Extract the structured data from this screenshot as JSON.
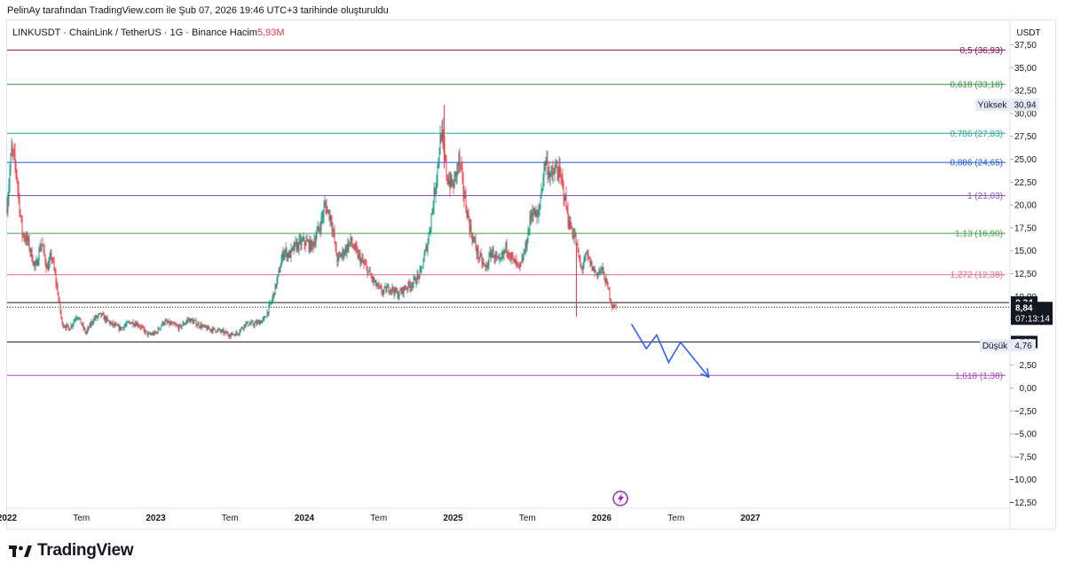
{
  "attribution": "PelinAy tarafından TradingView.com ile Şub 07, 2026 19:46 UTC+3 tarihinde oluşturuldu",
  "symbol": {
    "text": "LINKUSDT · ChainLink / TetherUS · 1G · Binance",
    "volume_label": "Hacim",
    "volume_value": "5,93M"
  },
  "currency": "USDT",
  "brand": "TradingView",
  "colors": {
    "up": "#089981",
    "down": "#f23645",
    "arrow": "#2962ff",
    "grid_border": "#e0e3eb"
  },
  "chart_data": {
    "type": "candlestick",
    "symbol": "LINKUSDT",
    "interval": "1G",
    "ylim": [
      -12.5,
      37.5
    ],
    "y_ticks": [
      "37,50",
      "35,00",
      "32,50",
      "30,00",
      "27,50",
      "25,00",
      "22,50",
      "20,00",
      "17,50",
      "15,00",
      "12,50",
      "10,00",
      "7,50",
      "5,00",
      "2,50",
      "0,00",
      "−2,50",
      "−5,00",
      "−7,50",
      "−10,00",
      "−12,50"
    ],
    "y_tick_values": [
      37.5,
      35,
      32.5,
      30,
      27.5,
      25,
      22.5,
      20,
      17.5,
      15,
      12.5,
      10,
      7.5,
      5,
      2.5,
      0,
      -2.5,
      -5,
      -7.5,
      -10,
      -12.5
    ],
    "x_ticks": [
      {
        "label": "2022",
        "t": 2022.0,
        "bold": true
      },
      {
        "label": "Tem",
        "t": 2022.5,
        "bold": false
      },
      {
        "label": "2023",
        "t": 2023.0,
        "bold": true
      },
      {
        "label": "Tem",
        "t": 2023.5,
        "bold": false
      },
      {
        "label": "2024",
        "t": 2024.0,
        "bold": true
      },
      {
        "label": "Tem",
        "t": 2024.5,
        "bold": false
      },
      {
        "label": "2025",
        "t": 2025.0,
        "bold": true
      },
      {
        "label": "Tem",
        "t": 2025.5,
        "bold": false
      },
      {
        "label": "2026",
        "t": 2026.0,
        "bold": true
      },
      {
        "label": "Tem",
        "t": 2026.5,
        "bold": false
      },
      {
        "label": "2027",
        "t": 2027.0,
        "bold": true
      }
    ],
    "fib_levels": [
      {
        "label": "0,5 (36,93)",
        "value": 36.93,
        "color": "#880e4f"
      },
      {
        "label": "0,618 (33,18)",
        "value": 33.18,
        "color": "#388e3c"
      },
      {
        "label": "0,786 (27,83)",
        "value": 27.83,
        "color": "#26a69a"
      },
      {
        "label": "0,886 (24,65)",
        "value": 24.65,
        "color": "#1e53e5"
      },
      {
        "label": "1 (21,03)",
        "value": 21.03,
        "color": "#7e57c2"
      },
      {
        "label": "1,13 (16,90)",
        "value": 16.9,
        "color": "#43a047"
      },
      {
        "label": "1,272 (12,38)",
        "value": 12.38,
        "color": "#f06292"
      },
      {
        "label": "1,618 (1,38)",
        "value": 1.38,
        "color": "#ab47bc"
      }
    ],
    "horizontal_lines": [
      {
        "value": 9.34,
        "style": "solid"
      },
      {
        "value": 8.84,
        "style": "dotted"
      },
      {
        "value": 5.03,
        "style": "solid"
      }
    ],
    "price_labels": {
      "high_label": "Yüksek",
      "high_value": "30,94",
      "high": 30.94,
      "low_label": "Düşük",
      "low_value": "4,76",
      "low": 4.76,
      "line_value": "9,34",
      "line": 9.34,
      "last_value": "8,84",
      "last": 8.84,
      "countdown": "07:13:14",
      "support_value": "5,03",
      "support": 5.03
    },
    "price_path": [
      [
        2022.0,
        20.0
      ],
      [
        2022.03,
        26.0
      ],
      [
        2022.06,
        24.0
      ],
      [
        2022.1,
        17.0
      ],
      [
        2022.14,
        16.0
      ],
      [
        2022.19,
        13.0
      ],
      [
        2022.23,
        16.0
      ],
      [
        2022.27,
        13.0
      ],
      [
        2022.3,
        14.5
      ],
      [
        2022.34,
        10.5
      ],
      [
        2022.37,
        7.0
      ],
      [
        2022.42,
        6.5
      ],
      [
        2022.47,
        8.0
      ],
      [
        2022.53,
        6.0
      ],
      [
        2022.58,
        7.5
      ],
      [
        2022.63,
        8.0
      ],
      [
        2022.7,
        7.0
      ],
      [
        2022.76,
        6.5
      ],
      [
        2022.83,
        7.2
      ],
      [
        2022.88,
        7.0
      ],
      [
        2022.95,
        5.8
      ],
      [
        2023.0,
        6.0
      ],
      [
        2023.05,
        7.2
      ],
      [
        2023.1,
        7.0
      ],
      [
        2023.16,
        6.6
      ],
      [
        2023.22,
        7.5
      ],
      [
        2023.28,
        7.0
      ],
      [
        2023.34,
        6.5
      ],
      [
        2023.42,
        6.3
      ],
      [
        2023.5,
        5.8
      ],
      [
        2023.55,
        6.0
      ],
      [
        2023.6,
        7.0
      ],
      [
        2023.67,
        7.0
      ],
      [
        2023.73,
        7.5
      ],
      [
        2023.78,
        9.5
      ],
      [
        2023.82,
        12.0
      ],
      [
        2023.86,
        15.0
      ],
      [
        2023.9,
        14.5
      ],
      [
        2023.94,
        15.5
      ],
      [
        2024.0,
        16.0
      ],
      [
        2024.05,
        15.5
      ],
      [
        2024.1,
        17.5
      ],
      [
        2024.14,
        20.0
      ],
      [
        2024.18,
        18.5
      ],
      [
        2024.22,
        14.0
      ],
      [
        2024.27,
        15.0
      ],
      [
        2024.31,
        16.0
      ],
      [
        2024.36,
        14.5
      ],
      [
        2024.42,
        13.0
      ],
      [
        2024.47,
        11.5
      ],
      [
        2024.52,
        10.5
      ],
      [
        2024.58,
        11.0
      ],
      [
        2024.63,
        10.2
      ],
      [
        2024.68,
        11.0
      ],
      [
        2024.73,
        11.5
      ],
      [
        2024.78,
        12.5
      ],
      [
        2024.83,
        16.0
      ],
      [
        2024.88,
        22.0
      ],
      [
        2024.92,
        28.0
      ],
      [
        2024.96,
        23.0
      ],
      [
        2025.0,
        22.0
      ],
      [
        2025.04,
        25.0
      ],
      [
        2025.08,
        20.5
      ],
      [
        2025.12,
        17.0
      ],
      [
        2025.17,
        14.5
      ],
      [
        2025.22,
        13.0
      ],
      [
        2025.26,
        15.0
      ],
      [
        2025.31,
        13.5
      ],
      [
        2025.36,
        15.5
      ],
      [
        2025.4,
        14.0
      ],
      [
        2025.45,
        13.0
      ],
      [
        2025.49,
        15.5
      ],
      [
        2025.53,
        19.5
      ],
      [
        2025.57,
        18.5
      ],
      [
        2025.62,
        25.0
      ],
      [
        2025.66,
        23.0
      ],
      [
        2025.7,
        24.0
      ],
      [
        2025.74,
        22.0
      ],
      [
        2025.78,
        18.0
      ],
      [
        2025.82,
        16.5
      ],
      [
        2025.86,
        13.0
      ],
      [
        2025.9,
        14.5
      ],
      [
        2025.94,
        13.0
      ],
      [
        2025.97,
        12.5
      ],
      [
        2026.0,
        13.0
      ],
      [
        2026.04,
        11.0
      ],
      [
        2026.07,
        9.0
      ],
      [
        2026.1,
        8.84
      ]
    ],
    "projection_arrow": [
      [
        2026.2,
        7.0
      ],
      [
        2026.3,
        4.3
      ],
      [
        2026.37,
        5.8
      ],
      [
        2026.45,
        2.8
      ],
      [
        2026.53,
        5.0
      ],
      [
        2026.72,
        1.2
      ]
    ]
  }
}
